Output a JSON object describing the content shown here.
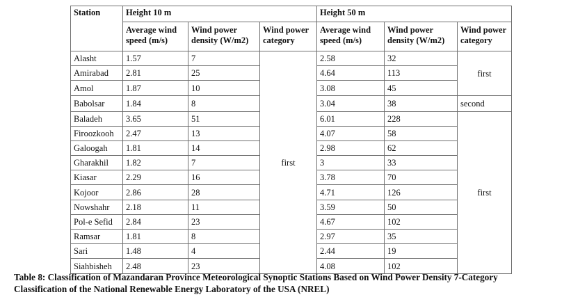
{
  "table": {
    "col_station": "Station",
    "group_10m": "Height 10 m",
    "group_50m": "Height 50 m",
    "col_speed": [
      "Average wind",
      "speed (m/s)"
    ],
    "col_density": [
      "Wind power",
      "density (W/m2)"
    ],
    "col_category": [
      "Wind power",
      "category"
    ],
    "rows": [
      {
        "station": "Alasht",
        "speed10": "1.57",
        "dens10": "7",
        "speed50": "2.58",
        "dens50": "32"
      },
      {
        "station": "Amirabad",
        "speed10": "2.81",
        "dens10": "25",
        "speed50": "4.64",
        "dens50": "113"
      },
      {
        "station": "Amol",
        "speed10": "1.87",
        "dens10": "10",
        "speed50": "3.08",
        "dens50": "45"
      },
      {
        "station": "Babolsar",
        "speed10": "1.84",
        "dens10": "8",
        "speed50": "3.04",
        "dens50": "38"
      },
      {
        "station": "Baladeh",
        "speed10": "3.65",
        "dens10": "51",
        "speed50": "6.01",
        "dens50": "228"
      },
      {
        "station": "Firoozkooh",
        "speed10": "2.47",
        "dens10": "13",
        "speed50": "4.07",
        "dens50": "58"
      },
      {
        "station": "Galoogah",
        "speed10": "1.81",
        "dens10": "14",
        "speed50": "2.98",
        "dens50": "62"
      },
      {
        "station": "Gharakhil",
        "speed10": "1.82",
        "dens10": "7",
        "speed50": "3",
        "dens50": "33"
      },
      {
        "station": "Kiasar",
        "speed10": "2.29",
        "dens10": "16",
        "speed50": "3.78",
        "dens50": "70"
      },
      {
        "station": "Kojoor",
        "speed10": "2.86",
        "dens10": "28",
        "speed50": "4.71",
        "dens50": "126"
      },
      {
        "station": "Nowshahr",
        "speed10": "2.18",
        "dens10": "11",
        "speed50": "3.59",
        "dens50": "50"
      },
      {
        "station": "Pol-e Sefid",
        "speed10": "2.84",
        "dens10": "23",
        "speed50": "4.67",
        "dens50": "102"
      },
      {
        "station": "Ramsar",
        "speed10": "1.81",
        "dens10": "8",
        "speed50": "2.97",
        "dens50": "35"
      },
      {
        "station": "Sari",
        "speed10": "1.48",
        "dens10": "4",
        "speed50": "2.44",
        "dens50": "19"
      },
      {
        "station": "Siahbisheh",
        "speed10": "2.48",
        "dens10": "23",
        "speed50": "4.08",
        "dens50": "102"
      }
    ],
    "category10": "first",
    "category50": [
      {
        "label": "first",
        "rows": 3
      },
      {
        "label": "second",
        "rows": 1
      },
      {
        "label": "first",
        "rows": 11
      }
    ]
  },
  "caption": [
    "Table 8: Classification of Mazandaran Province Meteorological Synoptic Stations Based on Wind Power Density 7-Category",
    "Classification of the National Renewable Energy Laboratory of the USA (NREL)"
  ]
}
